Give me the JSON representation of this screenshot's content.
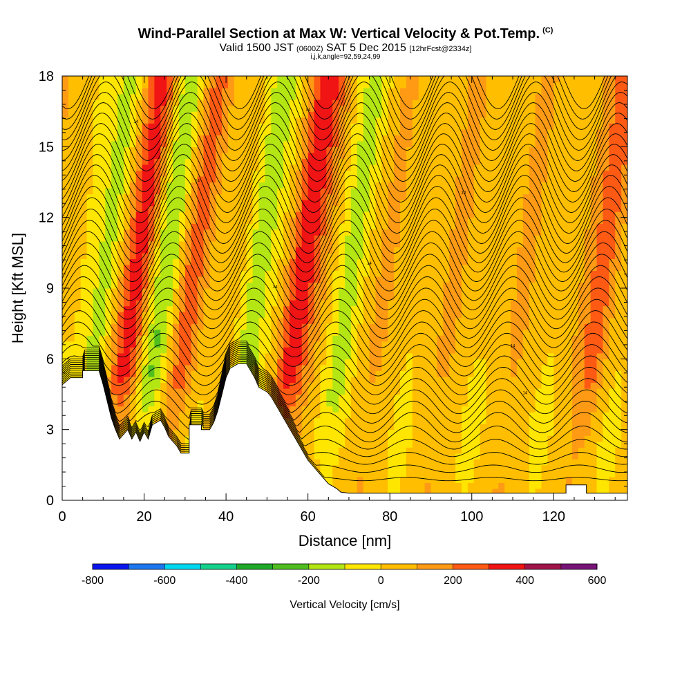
{
  "title": {
    "main": "Wind-Parallel Section at Max W: Vertical Velocity & Pot.Temp.",
    "tag": "(C)",
    "valid_prefix": "Valid 1500 JST",
    "valid_utc": "(0600Z)",
    "valid_date": "SAT 5 Dec 2015",
    "valid_fcst": "[12hrFcst@2334z]",
    "indices": "i,j,k,angle=92,59,24,99"
  },
  "chart_data": {
    "type": "heatmap",
    "xlabel": "Distance [nm]",
    "ylabel": "Height [Kft MSL]",
    "xlim": [
      0,
      138
    ],
    "ylim": [
      0,
      18
    ],
    "xticks": [
      0,
      20,
      40,
      60,
      80,
      100,
      120
    ],
    "yticks": [
      0,
      3,
      6,
      9,
      12,
      15,
      18
    ],
    "colorbar": {
      "label": "Vertical Velocity [cm/s]",
      "ticks": [
        -800,
        -600,
        -400,
        -200,
        0,
        200,
        400,
        600
      ],
      "levels": [
        -800,
        -700,
        -600,
        -500,
        -400,
        -300,
        -200,
        -100,
        0,
        100,
        200,
        300,
        400,
        500,
        600
      ],
      "colors": [
        "#0a14ec",
        "#1e78f0",
        "#00d8f0",
        "#14d28c",
        "#1eaa28",
        "#50be1e",
        "#b4e614",
        "#ffe600",
        "#ffbe00",
        "#ff9a14",
        "#ff5a14",
        "#f01414",
        "#a0144a",
        "#781478"
      ]
    },
    "wave_bands": [
      {
        "x_center": 10,
        "velocity": -250
      },
      {
        "x_center": 18,
        "velocity": 350
      },
      {
        "x_center": 25,
        "velocity": -300
      },
      {
        "x_center": 32,
        "velocity": 200
      },
      {
        "x_center": 47,
        "velocity": -250
      },
      {
        "x_center": 58,
        "velocity": 300
      },
      {
        "x_center": 70,
        "velocity": -150
      },
      {
        "x_center": 132,
        "velocity": 150
      }
    ],
    "terrain": [
      [
        0,
        4.9
      ],
      [
        2,
        5.2
      ],
      [
        5,
        5.2
      ],
      [
        5,
        5.5
      ],
      [
        9,
        5.5
      ],
      [
        10,
        4.9
      ],
      [
        11,
        4.2
      ],
      [
        12,
        3.5
      ],
      [
        13,
        3.0
      ],
      [
        14,
        2.6
      ],
      [
        15,
        2.8
      ],
      [
        16,
        3.0
      ],
      [
        17,
        2.6
      ],
      [
        18,
        2.9
      ],
      [
        19,
        2.5
      ],
      [
        20,
        2.9
      ],
      [
        21,
        2.6
      ],
      [
        22,
        3.2
      ],
      [
        24,
        3.4
      ],
      [
        25,
        3.1
      ],
      [
        26,
        2.7
      ],
      [
        27,
        2.5
      ],
      [
        28,
        2.3
      ],
      [
        29,
        2.0
      ],
      [
        31,
        2.0
      ],
      [
        31,
        3.2
      ],
      [
        34,
        3.2
      ],
      [
        34,
        3.0
      ],
      [
        36,
        3.0
      ],
      [
        37,
        3.3
      ],
      [
        38,
        3.8
      ],
      [
        39,
        4.5
      ],
      [
        40,
        5.2
      ],
      [
        41,
        5.6
      ],
      [
        43,
        5.8
      ],
      [
        45,
        5.8
      ],
      [
        46,
        5.5
      ],
      [
        47,
        5.2
      ],
      [
        48,
        4.8
      ],
      [
        50,
        4.6
      ],
      [
        51,
        4.4
      ],
      [
        52,
        4.1
      ],
      [
        53,
        3.8
      ],
      [
        54,
        3.5
      ],
      [
        55,
        3.2
      ],
      [
        56,
        2.9
      ],
      [
        57,
        2.6
      ],
      [
        58,
        2.3
      ],
      [
        59,
        2.0
      ],
      [
        60,
        1.7
      ],
      [
        61,
        1.5
      ],
      [
        62,
        1.3
      ],
      [
        63,
        1.1
      ],
      [
        64,
        0.9
      ],
      [
        65,
        0.7
      ],
      [
        67,
        0.5
      ],
      [
        68,
        0.35
      ],
      [
        70,
        0.3
      ],
      [
        123,
        0.3
      ],
      [
        123,
        0.65
      ],
      [
        128,
        0.65
      ],
      [
        128,
        0.3
      ],
      [
        138,
        0.3
      ]
    ],
    "contour_label": "14"
  }
}
